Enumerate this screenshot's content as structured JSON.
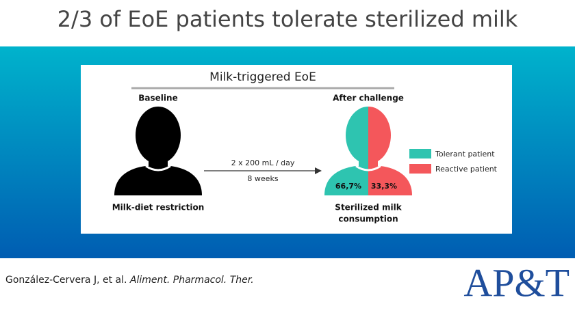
{
  "title": "2/3 of EoE patients tolerate sterilized milk",
  "figure": {
    "title": "Milk-triggered EoE",
    "baseline": {
      "heading": "Baseline",
      "caption": "Milk-diet restriction"
    },
    "arrow": {
      "dose": "2 x 200 mL / day",
      "duration": "8 weeks"
    },
    "after": {
      "heading": "After challenge",
      "caption_lines": [
        "Sterilized milk",
        "consumption"
      ],
      "segments": [
        {
          "label": "66,7%",
          "legend": "Tolerant patient",
          "color": "#2ec4b0"
        },
        {
          "label": "33,3%",
          "legend": "Reactive patient",
          "color": "#f4575b"
        }
      ]
    }
  },
  "citation": {
    "authors": "González-Cervera J, et al.",
    "journal": "Aliment. Pharmacol. Ther."
  },
  "logo": "AP&T"
}
